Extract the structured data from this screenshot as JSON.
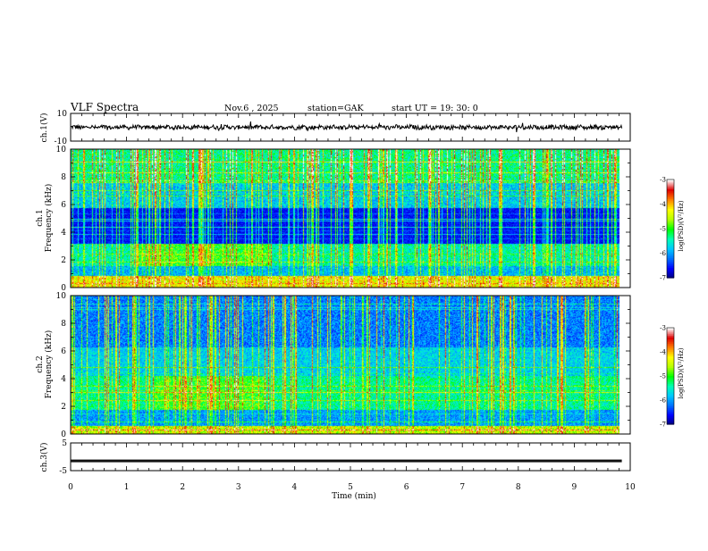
{
  "header": {
    "title": "VLF  Spectra",
    "date": "Nov.6  , 2025",
    "station": "station=GAK",
    "start_ut": "start  UT  =    19: 30: 0"
  },
  "colors": {
    "spectrum": [
      "#00007a",
      "#0000ff",
      "#0070ff",
      "#00c8ff",
      "#00ffb4",
      "#00ff00",
      "#b4ff00",
      "#ffff00",
      "#ff8000",
      "#e00000",
      "#ffffff"
    ]
  },
  "chart_data": [
    {
      "type": "line",
      "name": "ch1-waveform",
      "ylabel": "ch.1(V)",
      "ylim": [
        -10,
        10
      ],
      "y_tick_labels": [
        "10",
        "-10"
      ],
      "xlim": [
        0,
        10
      ],
      "approx_mean": 0,
      "approx_amplitude": 1.5
    },
    {
      "type": "heatmap",
      "name": "ch1-spectrogram",
      "ylabel_line1": "ch.1",
      "ylabel_line2": "Frequency  (kHz)",
      "ylim": [
        0,
        10
      ],
      "y_tick_labels": [
        "0",
        "2",
        "4",
        "6",
        "8",
        "10"
      ],
      "xlim": [
        0,
        9.85
      ],
      "colorbar": {
        "label": "log(PSD)(V²/Hz)",
        "range": [
          -7,
          -3
        ],
        "tick_labels": [
          "-3",
          "-4",
          "-5",
          "-6",
          "-7"
        ]
      }
    },
    {
      "type": "heatmap",
      "name": "ch2-spectrogram",
      "ylabel_line1": "ch.2",
      "ylabel_line2": "Frequency  (kHz)",
      "ylim": [
        0,
        10
      ],
      "y_tick_labels": [
        "0",
        "2",
        "4",
        "6",
        "8",
        "10"
      ],
      "xlim": [
        0,
        9.85
      ],
      "colorbar": {
        "label": "log(PSD)(V²/Hz)",
        "range": [
          -7,
          -3
        ],
        "tick_labels": [
          "-3",
          "-4",
          "-5",
          "-6",
          "-7"
        ]
      }
    },
    {
      "type": "line",
      "name": "ch3-waveform",
      "ylabel": "ch.3(V)",
      "ylim": [
        -5,
        5
      ],
      "y_tick_labels": [
        "5",
        "-5"
      ],
      "approx_mean": -1.5,
      "xlim": [
        0,
        10
      ]
    }
  ],
  "x_axis": {
    "label": "Time  (min)",
    "range": [
      0,
      10
    ],
    "tick_labels": [
      "0",
      "1",
      "2",
      "3",
      "4",
      "5",
      "6",
      "7",
      "8",
      "9",
      "10"
    ]
  }
}
